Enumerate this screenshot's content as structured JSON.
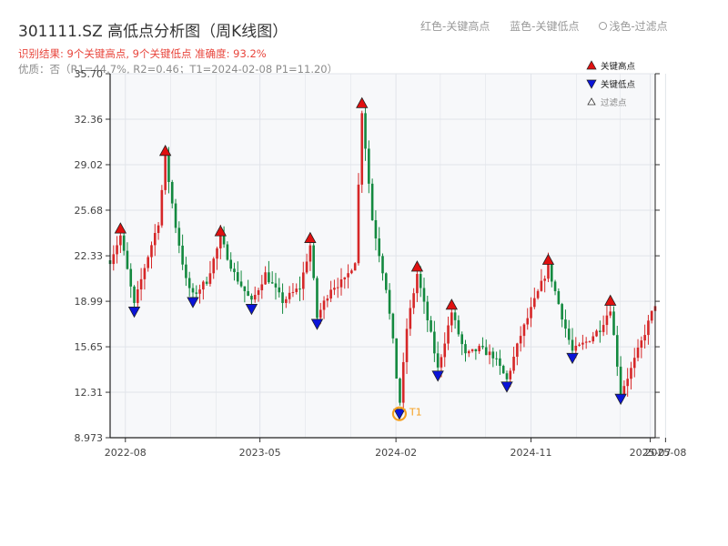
{
  "title": "301111.SZ 高低点分析图（周K线图）",
  "subtitle_result": "识别结果: 9个关键高点, 9个关键低点  准确度: 93.2%",
  "subtitle_quality": "优质：否（R1=44.7%, R2=0.46；T1=2024-02-08 P1=11.20）",
  "top_legend": {
    "red": "红色-关键高点",
    "blue": "蓝色-关键低点",
    "light": "浅色-过滤点"
  },
  "colors": {
    "up": "#d62728",
    "down": "#13893f",
    "high_marker": "#e01010",
    "low_marker": "#0a14d8",
    "t1_ring": "#f5a020",
    "plot_bg": "#f7f8fa",
    "grid": "#e1e4ea"
  },
  "chart_data": {
    "type": "candlestick",
    "x_axis": {
      "type": "date",
      "range": [
        "2022-07-01",
        "2025-07-11"
      ],
      "tick_labels": [
        {
          "date": "2022-08-01",
          "label": "2022-08"
        },
        {
          "date": "2023-05-01",
          "label": "2023-05"
        },
        {
          "date": "2024-02-01",
          "label": "2024-02"
        },
        {
          "date": "2024-11-01",
          "label": "2024-11"
        },
        {
          "date": "2025-07-01",
          "label": "2025-07"
        },
        {
          "date": "2025-08-01",
          "label": "2025-08"
        }
      ]
    },
    "y_axis": {
      "range": [
        8.973,
        35.7
      ],
      "ticks": [
        "35.70",
        "32.36",
        "29.02",
        "25.68",
        "22.33",
        "18.99",
        "15.65",
        "12.31",
        "8.973"
      ]
    },
    "grid": true,
    "legend": {
      "position": "top-right",
      "items": [
        {
          "label": "关键高点",
          "marker": "high"
        },
        {
          "label": "关键低点",
          "marker": "low"
        },
        {
          "label": "过滤点",
          "marker": "filtered"
        }
      ]
    },
    "price_path": [
      [
        "2022-07-01",
        22.0
      ],
      [
        "2022-07-22",
        23.8
      ],
      [
        "2022-08-19",
        18.7
      ],
      [
        "2022-09-09",
        21.5
      ],
      [
        "2022-10-07",
        24.8
      ],
      [
        "2022-10-21",
        29.5
      ],
      [
        "2022-11-11",
        24.5
      ],
      [
        "2022-12-02",
        20.5
      ],
      [
        "2022-12-16",
        19.4
      ],
      [
        "2023-01-13",
        20.5
      ],
      [
        "2023-02-10",
        23.6
      ],
      [
        "2023-03-10",
        21.0
      ],
      [
        "2023-04-14",
        18.9
      ],
      [
        "2023-05-12",
        21.0
      ],
      [
        "2023-06-16",
        19.0
      ],
      [
        "2023-07-21",
        20.0
      ],
      [
        "2023-08-11",
        23.1
      ],
      [
        "2023-08-25",
        17.8
      ],
      [
        "2023-09-22",
        20.0
      ],
      [
        "2023-10-20",
        20.5
      ],
      [
        "2023-11-10",
        22.0
      ],
      [
        "2023-11-24",
        33.0
      ],
      [
        "2023-12-15",
        25.0
      ],
      [
        "2024-01-12",
        20.0
      ],
      [
        "2024-01-26",
        16.0
      ],
      [
        "2024-02-08",
        11.2
      ],
      [
        "2024-02-23",
        17.0
      ],
      [
        "2024-03-15",
        21.0
      ],
      [
        "2024-04-12",
        16.5
      ],
      [
        "2024-04-26",
        14.0
      ],
      [
        "2024-05-24",
        18.2
      ],
      [
        "2024-06-21",
        15.0
      ],
      [
        "2024-07-19",
        15.5
      ],
      [
        "2024-08-16",
        15.0
      ],
      [
        "2024-09-13",
        13.2
      ],
      [
        "2024-10-11",
        16.5
      ],
      [
        "2024-11-08",
        19.0
      ],
      [
        "2024-12-06",
        21.5
      ],
      [
        "2025-01-10",
        17.0
      ],
      [
        "2025-01-24",
        15.3
      ],
      [
        "2025-02-21",
        16.0
      ],
      [
        "2025-03-21",
        17.0
      ],
      [
        "2025-04-11",
        18.5
      ],
      [
        "2025-05-02",
        12.3
      ],
      [
        "2025-05-23",
        14.0
      ],
      [
        "2025-06-13",
        16.0
      ],
      [
        "2025-07-11",
        18.8
      ]
    ],
    "key_highs": [
      {
        "date": "2022-07-22",
        "price": 23.8
      },
      {
        "date": "2022-10-21",
        "price": 29.5
      },
      {
        "date": "2023-02-10",
        "price": 23.6
      },
      {
        "date": "2023-08-11",
        "price": 23.1
      },
      {
        "date": "2023-11-24",
        "price": 33.0
      },
      {
        "date": "2024-03-15",
        "price": 21.0
      },
      {
        "date": "2024-05-24",
        "price": 18.2
      },
      {
        "date": "2024-12-06",
        "price": 21.5
      },
      {
        "date": "2025-04-11",
        "price": 18.5
      }
    ],
    "key_lows": [
      {
        "date": "2022-08-19",
        "price": 18.7
      },
      {
        "date": "2022-12-16",
        "price": 19.4
      },
      {
        "date": "2023-04-14",
        "price": 18.9
      },
      {
        "date": "2023-08-25",
        "price": 17.8
      },
      {
        "date": "2024-02-08",
        "price": 11.2
      },
      {
        "date": "2024-04-26",
        "price": 14.0
      },
      {
        "date": "2024-09-13",
        "price": 13.2
      },
      {
        "date": "2025-01-24",
        "price": 15.3
      },
      {
        "date": "2025-05-02",
        "price": 12.3
      }
    ],
    "annotation": {
      "label": "T1",
      "date": "2024-02-08",
      "price": 11.2
    }
  }
}
